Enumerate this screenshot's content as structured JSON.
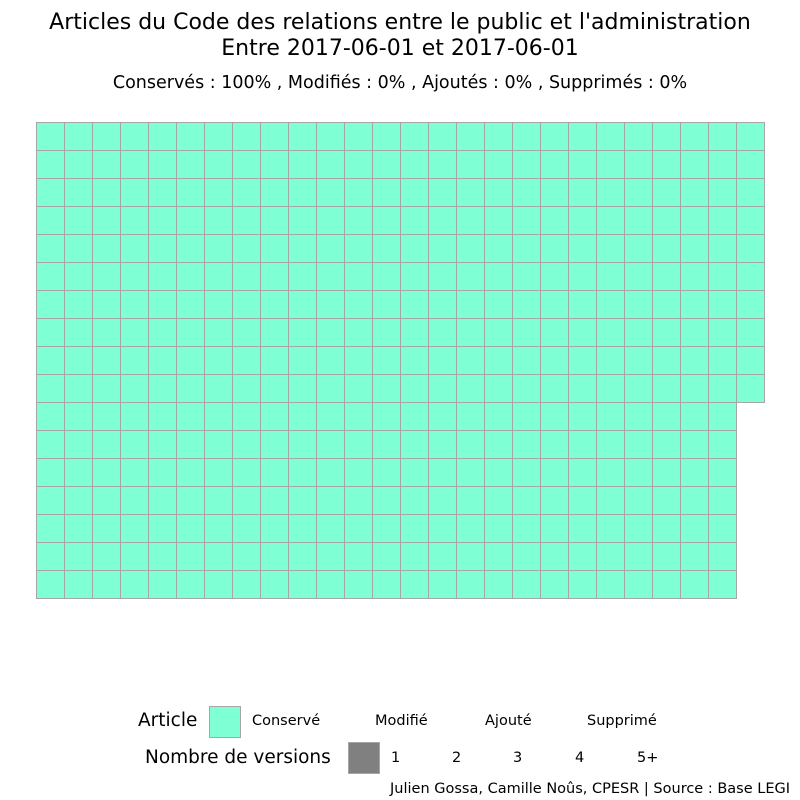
{
  "header": {
    "title_line1": "Articles du Code des relations entre le public et l'administration",
    "title_line2": "Entre 2017-06-01 et 2017-06-01",
    "subtitle": "Conservés :  100% , Modifiés :  0% , Ajoutés :  0% , Supprimés :  0%"
  },
  "legend": {
    "article_title": "Article",
    "article_items": [
      "Conservé",
      "Modifié",
      "Ajouté",
      "Supprimé"
    ],
    "versions_title": "Nombre de versions",
    "versions_items": [
      "1",
      "2",
      "3",
      "4",
      "5+"
    ]
  },
  "caption": "Julien Gossa, Camille Noûs, CPESR  |  Source : Base LEGI",
  "colors": {
    "conserve": "#7fffd4",
    "tile_border": "#a6a6a6",
    "versions_swatch": "#808080"
  },
  "chart_data": {
    "type": "waffle",
    "title": "Articles du Code des relations entre le public et l'administration",
    "subtitle": "Entre 2017-06-01 et 2017-06-01",
    "columns": 26,
    "rows": 17,
    "categories": [
      "Conservé",
      "Modifié",
      "Ajouté",
      "Supprimé"
    ],
    "values": [
      435,
      0,
      0,
      0
    ],
    "percentages": [
      100,
      0,
      0,
      0
    ],
    "fill_order": "column-major, top-to-bottom"
  }
}
